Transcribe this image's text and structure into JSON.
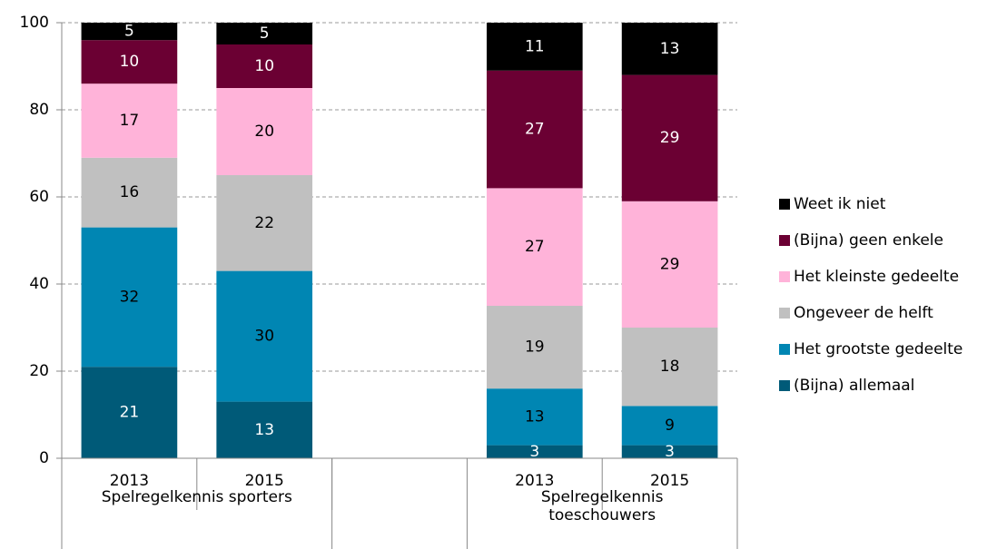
{
  "chart_data": {
    "type": "stacked_bar",
    "groups": [
      {
        "name": "Spelregelkennis sporters",
        "categories": [
          "2013",
          "2015"
        ]
      },
      {
        "name": "Spelregelkennis toeschouwers",
        "categories": [
          "2013",
          "2015"
        ]
      }
    ],
    "series": [
      {
        "name": "(Bijna) allemaal",
        "color": "#005a78",
        "values": [
          21,
          13,
          3,
          3
        ]
      },
      {
        "name": "Het grootste gedeelte",
        "color": "#0086b3",
        "values": [
          32,
          30,
          13,
          9
        ]
      },
      {
        "name": "Ongeveer de helft",
        "color": "#c0c0c0",
        "values": [
          16,
          22,
          19,
          18
        ]
      },
      {
        "name": "Het kleinste gedeelte",
        "color": "#ffb3d9",
        "values": [
          17,
          20,
          27,
          29
        ]
      },
      {
        "name": "(Bijna) geen enkele",
        "color": "#6b0033",
        "values": [
          10,
          10,
          27,
          29
        ]
      },
      {
        "name": "Weet ik niet",
        "color": "#000000",
        "values": [
          5,
          5,
          11,
          13
        ]
      }
    ],
    "ylim": [
      0,
      100
    ],
    "yticks": [
      0,
      20,
      40,
      60,
      80,
      100
    ],
    "grid": true,
    "legend": "right"
  }
}
